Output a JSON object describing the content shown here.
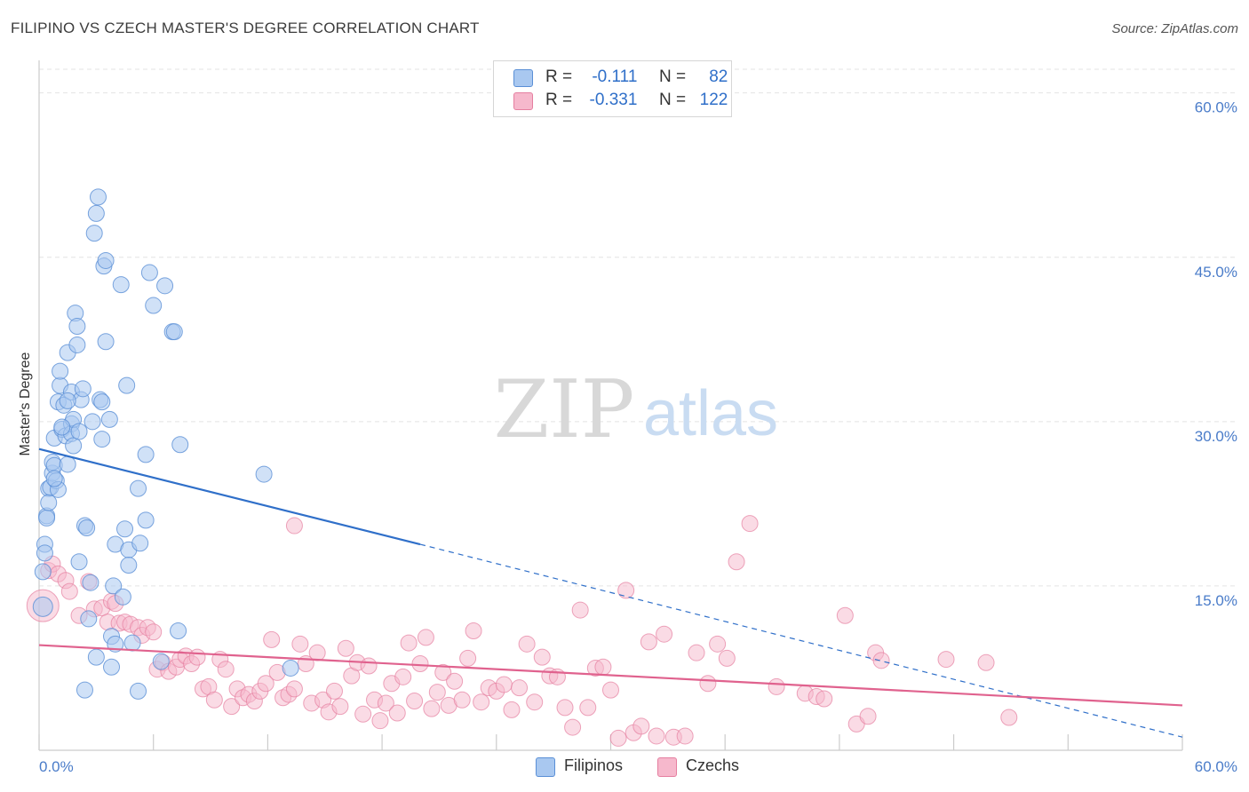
{
  "title": "FILIPINO VS CZECH MASTER'S DEGREE CORRELATION CHART",
  "source": "Source: ZipAtlas.com",
  "watermark": {
    "zip": "ZIP",
    "atlas": "atlas"
  },
  "legend": {
    "rows": [
      {
        "r_label": "R =",
        "r_value": "-0.111",
        "n_label": "N =",
        "n_value": "82"
      },
      {
        "r_label": "R =",
        "r_value": "-0.331",
        "n_label": "N =",
        "n_value": "122"
      }
    ]
  },
  "bottom_legend": [
    "Filipinos",
    "Czechs"
  ],
  "colors": {
    "filipino_fill": "#a9c8f0",
    "filipino_stroke": "#5a8fd6",
    "filipino_line": "#2f6fc9",
    "czech_fill": "#f6b8cc",
    "czech_stroke": "#e57fa0",
    "czech_line": "#e0628e",
    "grid": "#e3e3e3",
    "axis": "#cccccc"
  },
  "chart_data": {
    "type": "scatter",
    "title": "FILIPINO VS CZECH MASTER'S DEGREE CORRELATION CHART",
    "xlabel": "",
    "ylabel": "Master's Degree",
    "xlim": [
      0,
      60
    ],
    "ylim": [
      0,
      62
    ],
    "x_tick_labels": [
      "0.0%",
      "60.0%"
    ],
    "y_ticks": [
      15,
      30,
      45,
      60
    ],
    "y_tick_labels": [
      "15.0%",
      "30.0%",
      "45.0%",
      "60.0%"
    ],
    "grid": true,
    "series": [
      {
        "name": "Filipinos",
        "r": -0.111,
        "n": 82,
        "trend": {
          "x0": 0,
          "y0": 27.5,
          "x1_solid": 20,
          "y1_solid": 18.8,
          "x_end": 60,
          "y_end": 1.2
        },
        "points": [
          [
            0.2,
            13.1
          ],
          [
            0.2,
            16.3
          ],
          [
            0.3,
            18.8
          ],
          [
            0.3,
            18.0
          ],
          [
            0.4,
            21.4
          ],
          [
            0.4,
            21.2
          ],
          [
            0.5,
            23.9
          ],
          [
            0.5,
            22.6
          ],
          [
            0.6,
            24.0
          ],
          [
            0.7,
            25.3
          ],
          [
            0.7,
            26.3
          ],
          [
            0.8,
            26.0
          ],
          [
            0.8,
            28.5
          ],
          [
            0.9,
            24.6
          ],
          [
            1.0,
            31.8
          ],
          [
            1.0,
            23.8
          ],
          [
            1.1,
            33.3
          ],
          [
            1.1,
            34.6
          ],
          [
            1.2,
            29.3
          ],
          [
            1.3,
            31.5
          ],
          [
            1.4,
            28.7
          ],
          [
            1.5,
            26.1
          ],
          [
            1.5,
            36.3
          ],
          [
            1.7,
            29.8
          ],
          [
            1.7,
            32.7
          ],
          [
            1.7,
            28.9
          ],
          [
            1.8,
            27.8
          ],
          [
            1.8,
            30.2
          ],
          [
            1.9,
            39.9
          ],
          [
            2.0,
            38.7
          ],
          [
            2.0,
            37.0
          ],
          [
            2.1,
            29.1
          ],
          [
            2.1,
            17.2
          ],
          [
            2.2,
            32.0
          ],
          [
            2.3,
            33.0
          ],
          [
            2.4,
            20.5
          ],
          [
            2.5,
            20.3
          ],
          [
            2.7,
            15.3
          ],
          [
            2.6,
            12.0
          ],
          [
            2.8,
            30.0
          ],
          [
            2.9,
            47.2
          ],
          [
            3.0,
            49.0
          ],
          [
            3.1,
            50.5
          ],
          [
            3.2,
            32.0
          ],
          [
            3.3,
            31.8
          ],
          [
            3.3,
            28.4
          ],
          [
            3.4,
            44.2
          ],
          [
            3.5,
            44.7
          ],
          [
            3.5,
            37.3
          ],
          [
            3.7,
            30.2
          ],
          [
            3.8,
            10.4
          ],
          [
            3.8,
            7.6
          ],
          [
            3.9,
            15.0
          ],
          [
            4.0,
            9.7
          ],
          [
            4.0,
            18.8
          ],
          [
            4.3,
            42.5
          ],
          [
            4.4,
            14.0
          ],
          [
            4.5,
            20.2
          ],
          [
            4.6,
            33.3
          ],
          [
            4.7,
            18.3
          ],
          [
            4.7,
            16.9
          ],
          [
            4.9,
            9.8
          ],
          [
            5.2,
            23.9
          ],
          [
            5.2,
            5.4
          ],
          [
            5.3,
            18.9
          ],
          [
            5.6,
            21.0
          ],
          [
            5.6,
            27.0
          ],
          [
            5.8,
            43.6
          ],
          [
            6.0,
            40.6
          ],
          [
            6.4,
            8.1
          ],
          [
            6.6,
            42.4
          ],
          [
            7.0,
            38.2
          ],
          [
            7.1,
            38.2
          ],
          [
            7.3,
            10.9
          ],
          [
            7.4,
            27.9
          ],
          [
            11.8,
            25.2
          ],
          [
            2.4,
            5.5
          ],
          [
            3.0,
            8.5
          ],
          [
            13.2,
            7.5
          ],
          [
            1.2,
            29.5
          ],
          [
            1.5,
            31.9
          ],
          [
            0.8,
            24.8
          ]
        ]
      },
      {
        "name": "Czechs",
        "r": -0.331,
        "n": 122,
        "trend": {
          "x0": 0,
          "y0": 9.6,
          "x_end": 60,
          "y_end": 4.1
        },
        "points": [
          [
            0.2,
            13.2
          ],
          [
            0.5,
            16.4
          ],
          [
            0.7,
            17.0
          ],
          [
            1.0,
            16.1
          ],
          [
            1.4,
            15.5
          ],
          [
            1.6,
            14.5
          ],
          [
            2.1,
            12.3
          ],
          [
            2.6,
            15.4
          ],
          [
            2.9,
            12.9
          ],
          [
            3.3,
            13.0
          ],
          [
            3.6,
            11.7
          ],
          [
            3.8,
            13.6
          ],
          [
            4.0,
            13.4
          ],
          [
            4.2,
            11.6
          ],
          [
            4.5,
            11.7
          ],
          [
            4.8,
            11.5
          ],
          [
            5.2,
            11.2
          ],
          [
            5.4,
            10.5
          ],
          [
            5.7,
            11.2
          ],
          [
            6.0,
            10.8
          ],
          [
            6.2,
            7.4
          ],
          [
            6.5,
            8.0
          ],
          [
            6.8,
            7.2
          ],
          [
            7.2,
            7.6
          ],
          [
            7.4,
            8.3
          ],
          [
            7.7,
            8.6
          ],
          [
            8.0,
            7.9
          ],
          [
            8.3,
            8.5
          ],
          [
            8.6,
            5.6
          ],
          [
            8.9,
            5.8
          ],
          [
            9.2,
            4.6
          ],
          [
            9.5,
            8.3
          ],
          [
            9.8,
            7.4
          ],
          [
            10.1,
            4.0
          ],
          [
            10.4,
            5.6
          ],
          [
            10.7,
            4.8
          ],
          [
            11.0,
            5.1
          ],
          [
            11.3,
            4.5
          ],
          [
            11.6,
            5.4
          ],
          [
            11.9,
            6.1
          ],
          [
            12.2,
            10.1
          ],
          [
            12.5,
            7.1
          ],
          [
            12.8,
            4.8
          ],
          [
            13.1,
            5.1
          ],
          [
            13.4,
            5.6
          ],
          [
            13.7,
            9.7
          ],
          [
            14.0,
            7.9
          ],
          [
            14.3,
            4.3
          ],
          [
            14.6,
            8.9
          ],
          [
            14.9,
            4.6
          ],
          [
            15.2,
            3.5
          ],
          [
            15.5,
            5.4
          ],
          [
            15.8,
            4.0
          ],
          [
            16.1,
            9.3
          ],
          [
            16.4,
            6.8
          ],
          [
            16.7,
            8.0
          ],
          [
            17.0,
            3.3
          ],
          [
            17.3,
            7.7
          ],
          [
            17.6,
            4.6
          ],
          [
            17.9,
            2.7
          ],
          [
            18.2,
            4.3
          ],
          [
            18.5,
            6.1
          ],
          [
            18.8,
            3.4
          ],
          [
            19.1,
            6.7
          ],
          [
            19.4,
            9.8
          ],
          [
            19.7,
            4.5
          ],
          [
            20.0,
            7.9
          ],
          [
            20.3,
            10.3
          ],
          [
            20.6,
            3.8
          ],
          [
            20.9,
            5.3
          ],
          [
            21.2,
            7.1
          ],
          [
            21.5,
            4.1
          ],
          [
            21.8,
            6.3
          ],
          [
            22.2,
            4.6
          ],
          [
            22.5,
            8.4
          ],
          [
            22.8,
            10.9
          ],
          [
            23.2,
            4.4
          ],
          [
            23.6,
            5.7
          ],
          [
            24.0,
            5.4
          ],
          [
            24.4,
            6.0
          ],
          [
            24.8,
            3.7
          ],
          [
            25.2,
            5.7
          ],
          [
            25.6,
            9.7
          ],
          [
            26.0,
            4.4
          ],
          [
            26.4,
            8.5
          ],
          [
            26.8,
            6.8
          ],
          [
            27.2,
            6.7
          ],
          [
            27.6,
            3.9
          ],
          [
            28.0,
            2.1
          ],
          [
            28.4,
            12.8
          ],
          [
            28.8,
            3.9
          ],
          [
            29.2,
            7.5
          ],
          [
            29.6,
            7.6
          ],
          [
            30.0,
            5.5
          ],
          [
            30.4,
            1.1
          ],
          [
            30.8,
            14.6
          ],
          [
            31.2,
            1.6
          ],
          [
            31.6,
            2.2
          ],
          [
            32.0,
            9.9
          ],
          [
            32.4,
            1.3
          ],
          [
            32.8,
            10.6
          ],
          [
            33.3,
            1.2
          ],
          [
            33.9,
            1.3
          ],
          [
            34.5,
            8.9
          ],
          [
            35.1,
            6.1
          ],
          [
            35.6,
            9.7
          ],
          [
            36.1,
            8.4
          ],
          [
            36.6,
            17.2
          ],
          [
            37.3,
            20.7
          ],
          [
            38.7,
            5.8
          ],
          [
            40.2,
            5.2
          ],
          [
            40.8,
            4.9
          ],
          [
            41.2,
            4.7
          ],
          [
            42.3,
            12.3
          ],
          [
            42.9,
            2.4
          ],
          [
            43.5,
            3.1
          ],
          [
            43.9,
            8.9
          ],
          [
            44.2,
            8.2
          ],
          [
            47.6,
            8.3
          ],
          [
            49.7,
            8.0
          ],
          [
            50.9,
            3.0
          ],
          [
            13.4,
            20.5
          ]
        ]
      }
    ]
  }
}
